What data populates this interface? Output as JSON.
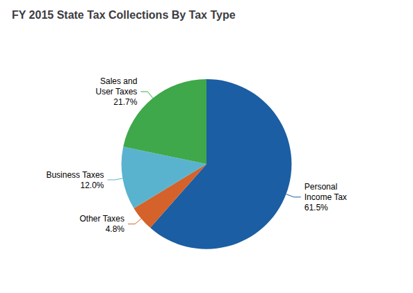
{
  "chart_data": {
    "type": "pie",
    "title": "FY 2015 State Tax Collections By Tax Type",
    "categories": [
      "Personal\nIncome Tax",
      "Other Taxes",
      "Business Taxes",
      "Sales and\nUser Taxes"
    ],
    "values": [
      61.5,
      4.8,
      12.0,
      21.7
    ],
    "value_labels": [
      "61.5%",
      "4.8%",
      "12.0%",
      "21.7%"
    ],
    "colors": [
      "#1B5EA3",
      "#D4622A",
      "#5AB3CE",
      "#3EA84A"
    ],
    "data_labels": true
  }
}
